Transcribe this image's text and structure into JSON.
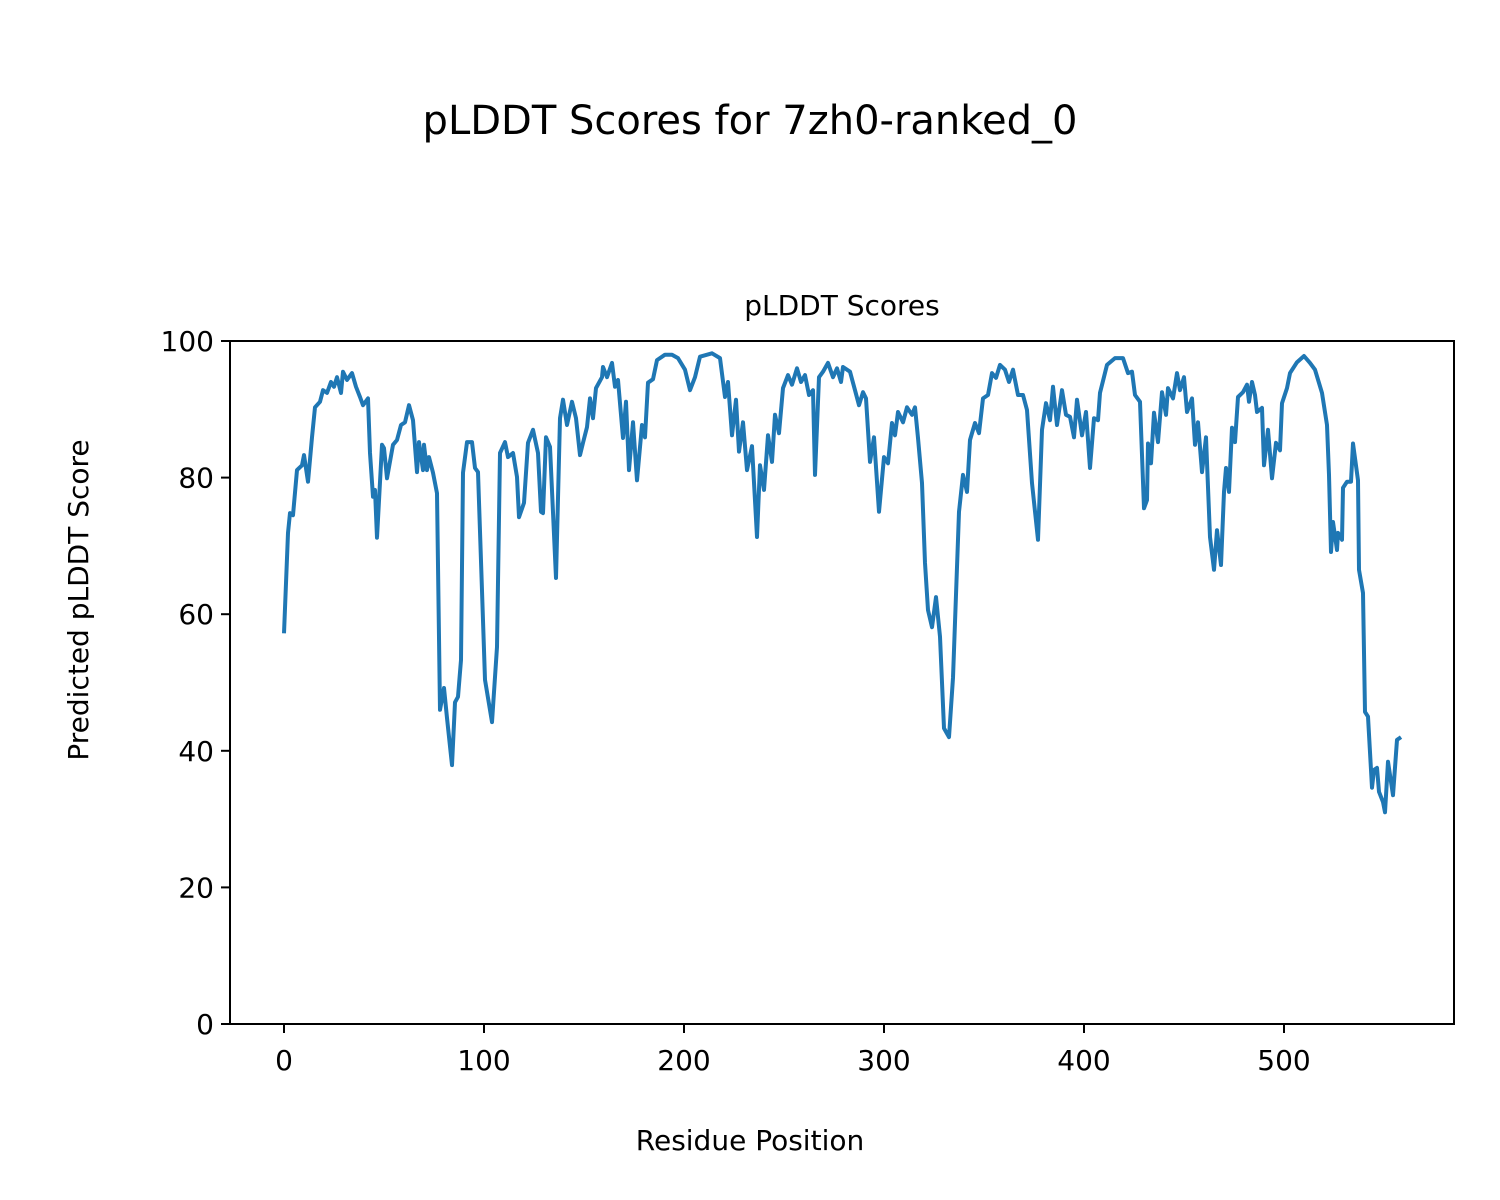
{
  "chart_data": {
    "type": "line",
    "suptitle": "pLDDT Scores for 7zh0-ranked_0",
    "title": "pLDDT Scores",
    "xlabel": "Residue Position",
    "ylabel": "Predicted pLDDT Score",
    "xlim": [
      -27,
      585
    ],
    "ylim": [
      0,
      100
    ],
    "xticks": [
      0,
      100,
      200,
      300,
      400,
      500
    ],
    "yticks": [
      0,
      20,
      40,
      60,
      80,
      100
    ],
    "grid": false,
    "line_color": "#1f77b4",
    "series": [
      {
        "name": "pLDDT",
        "points": [
          [
            0,
            57.2
          ],
          [
            2,
            71.9
          ],
          [
            3,
            74.8
          ],
          [
            4.5,
            74.5
          ],
          [
            6.5,
            81.1
          ],
          [
            9,
            81.8
          ],
          [
            10,
            83.3
          ],
          [
            12,
            79.4
          ],
          [
            14,
            85.9
          ],
          [
            15.5,
            90.3
          ],
          [
            18,
            91.1
          ],
          [
            19.5,
            92.8
          ],
          [
            21.5,
            92.4
          ],
          [
            23.5,
            94
          ],
          [
            25,
            93.3
          ],
          [
            26.5,
            94.7
          ],
          [
            28.5,
            92.4
          ],
          [
            29.5,
            95.5
          ],
          [
            31.5,
            94.3
          ],
          [
            34,
            95.3
          ],
          [
            36,
            93.3
          ],
          [
            38,
            91.8
          ],
          [
            39.5,
            90.6
          ],
          [
            42,
            91.6
          ],
          [
            43,
            83.6
          ],
          [
            44.5,
            77.2
          ],
          [
            45.5,
            78.2
          ],
          [
            46.5,
            71.2
          ],
          [
            49,
            84.8
          ],
          [
            50,
            84.3
          ],
          [
            51.5,
            79.9
          ],
          [
            54.5,
            84.8
          ],
          [
            56.5,
            85.5
          ],
          [
            58.5,
            87.7
          ],
          [
            60.5,
            88.1
          ],
          [
            62.5,
            90.6
          ],
          [
            64.5,
            88.4
          ],
          [
            66.5,
            80.8
          ],
          [
            67.5,
            85.2
          ],
          [
            69.5,
            81.1
          ],
          [
            70,
            84.8
          ],
          [
            71.5,
            81.1
          ],
          [
            72.5,
            83
          ],
          [
            74.5,
            80.7
          ],
          [
            76.5,
            77.7
          ],
          [
            78,
            46
          ],
          [
            80,
            49.2
          ],
          [
            81.5,
            44.8
          ],
          [
            84,
            37.9
          ],
          [
            85.5,
            47.1
          ],
          [
            87,
            47.9
          ],
          [
            88.5,
            53.3
          ],
          [
            89.5,
            80.7
          ],
          [
            91.5,
            85.2
          ],
          [
            94,
            85.2
          ],
          [
            95.5,
            81.4
          ],
          [
            97,
            80.8
          ],
          [
            100.5,
            50.4
          ],
          [
            104,
            44.2
          ],
          [
            106.5,
            55.2
          ],
          [
            108,
            83.6
          ],
          [
            110.5,
            85.2
          ],
          [
            112,
            83
          ],
          [
            114.5,
            83.6
          ],
          [
            116.5,
            80.1
          ],
          [
            117.5,
            74.2
          ],
          [
            120,
            76.3
          ],
          [
            122,
            85.1
          ],
          [
            124.5,
            87
          ],
          [
            127,
            83.6
          ],
          [
            128.5,
            75
          ],
          [
            129.5,
            74.8
          ],
          [
            131,
            85.9
          ],
          [
            133,
            84.5
          ],
          [
            136,
            65.3
          ],
          [
            138,
            88.7
          ],
          [
            139.5,
            91.4
          ],
          [
            141.5,
            87.7
          ],
          [
            144,
            91.1
          ],
          [
            146,
            88.7
          ],
          [
            148,
            83.3
          ],
          [
            149.5,
            85.1
          ],
          [
            151.5,
            87.4
          ],
          [
            153,
            91.6
          ],
          [
            154.5,
            88.7
          ],
          [
            156,
            93.1
          ],
          [
            159,
            94.7
          ],
          [
            159.5,
            96.2
          ],
          [
            161.5,
            94.7
          ],
          [
            164,
            96.8
          ],
          [
            165.5,
            93.3
          ],
          [
            167,
            94.3
          ],
          [
            169.5,
            85.8
          ],
          [
            171,
            91.1
          ],
          [
            172.5,
            81.1
          ],
          [
            174.5,
            88.1
          ],
          [
            176.5,
            79.6
          ],
          [
            179,
            87.7
          ],
          [
            180.5,
            85.9
          ],
          [
            182,
            93.9
          ],
          [
            184.5,
            94.4
          ],
          [
            186.5,
            97.2
          ],
          [
            190.5,
            98
          ],
          [
            194,
            98
          ],
          [
            197,
            97.5
          ],
          [
            200.5,
            95.8
          ],
          [
            203,
            92.8
          ],
          [
            205.5,
            94.7
          ],
          [
            208,
            97.7
          ],
          [
            214,
            98.2
          ],
          [
            218,
            97.5
          ],
          [
            220.5,
            91.8
          ],
          [
            222,
            94
          ],
          [
            224,
            86.2
          ],
          [
            226,
            91.4
          ],
          [
            227.5,
            83.8
          ],
          [
            229.5,
            88.1
          ],
          [
            231.5,
            81.1
          ],
          [
            234,
            84.6
          ],
          [
            236.5,
            71.3
          ],
          [
            238,
            81.8
          ],
          [
            240,
            78.2
          ],
          [
            242,
            86.2
          ],
          [
            244,
            82.3
          ],
          [
            245.5,
            89.2
          ],
          [
            247.5,
            86.5
          ],
          [
            249.5,
            93.1
          ],
          [
            252,
            95
          ],
          [
            254,
            93.6
          ],
          [
            256.5,
            96
          ],
          [
            258.5,
            94
          ],
          [
            260.5,
            95
          ],
          [
            262.5,
            92.1
          ],
          [
            264.5,
            92.8
          ],
          [
            265.5,
            80.4
          ],
          [
            267.5,
            94.7
          ],
          [
            269.5,
            95.5
          ],
          [
            272,
            96.8
          ],
          [
            274.5,
            94.7
          ],
          [
            276.5,
            96
          ],
          [
            278.5,
            94
          ],
          [
            279.5,
            96.2
          ],
          [
            283,
            95.5
          ],
          [
            285.5,
            92.8
          ],
          [
            287.5,
            90.6
          ],
          [
            289.5,
            92.5
          ],
          [
            291,
            91.6
          ],
          [
            293,
            82.3
          ],
          [
            295,
            85.9
          ],
          [
            297.5,
            75
          ],
          [
            300,
            83
          ],
          [
            302,
            82.1
          ],
          [
            304,
            88
          ],
          [
            305.5,
            86.2
          ],
          [
            307,
            89.6
          ],
          [
            309.5,
            88.1
          ],
          [
            311.5,
            90.3
          ],
          [
            314,
            89.2
          ],
          [
            315.5,
            90.3
          ],
          [
            317,
            85.8
          ],
          [
            319,
            79.2
          ],
          [
            320.5,
            67.5
          ],
          [
            322,
            60.6
          ],
          [
            324,
            58.1
          ],
          [
            326,
            62.5
          ],
          [
            328,
            56.7
          ],
          [
            330,
            43.3
          ],
          [
            332.5,
            42
          ],
          [
            334.5,
            50.7
          ],
          [
            337.5,
            75
          ],
          [
            339.5,
            80.4
          ],
          [
            341.5,
            77.9
          ],
          [
            343,
            85.5
          ],
          [
            345.5,
            88
          ],
          [
            347.5,
            86.5
          ],
          [
            349.5,
            91.6
          ],
          [
            352,
            92.1
          ],
          [
            354,
            95.3
          ],
          [
            356,
            94.6
          ],
          [
            358,
            96.5
          ],
          [
            360.5,
            95.8
          ],
          [
            362.5,
            94
          ],
          [
            364.5,
            95.8
          ],
          [
            367,
            92.1
          ],
          [
            369.5,
            92.1
          ],
          [
            371.5,
            89.9
          ],
          [
            374,
            79.2
          ],
          [
            377,
            70.9
          ],
          [
            379,
            87
          ],
          [
            381,
            90.9
          ],
          [
            383,
            88.4
          ],
          [
            384.5,
            93.3
          ],
          [
            386.5,
            87.7
          ],
          [
            389,
            92.8
          ],
          [
            391,
            89.2
          ],
          [
            393,
            88.9
          ],
          [
            395,
            85.9
          ],
          [
            396.5,
            91.4
          ],
          [
            399,
            86.2
          ],
          [
            401,
            89.6
          ],
          [
            403,
            81.4
          ],
          [
            405,
            88.7
          ],
          [
            407,
            88.4
          ],
          [
            408,
            92.4
          ],
          [
            411.5,
            96.5
          ],
          [
            415.5,
            97.5
          ],
          [
            419.5,
            97.5
          ],
          [
            422,
            95.3
          ],
          [
            424,
            95.5
          ],
          [
            425.5,
            92.1
          ],
          [
            428,
            91.1
          ],
          [
            430,
            75.5
          ],
          [
            431.5,
            76.7
          ],
          [
            432,
            85
          ],
          [
            433.5,
            82.1
          ],
          [
            435,
            89.5
          ],
          [
            437,
            85.2
          ],
          [
            439,
            92.5
          ],
          [
            441,
            89.2
          ],
          [
            442,
            93.1
          ],
          [
            444.5,
            91.6
          ],
          [
            446.5,
            95.3
          ],
          [
            448,
            92.8
          ],
          [
            450,
            94.7
          ],
          [
            451.5,
            89.6
          ],
          [
            454,
            91.6
          ],
          [
            455.5,
            84.8
          ],
          [
            457,
            88.1
          ],
          [
            459,
            80.8
          ],
          [
            461,
            85.9
          ],
          [
            463,
            71.3
          ],
          [
            465,
            66.5
          ],
          [
            466.5,
            72.3
          ],
          [
            468.5,
            67.2
          ],
          [
            470,
            77.9
          ],
          [
            471,
            81.4
          ],
          [
            472.5,
            77.9
          ],
          [
            474,
            87.3
          ],
          [
            475.5,
            85.2
          ],
          [
            477,
            91.8
          ],
          [
            479.5,
            92.5
          ],
          [
            481.5,
            93.6
          ],
          [
            482.5,
            91.1
          ],
          [
            484,
            94
          ],
          [
            485.5,
            92.1
          ],
          [
            486.5,
            89.6
          ],
          [
            489,
            90.2
          ],
          [
            490,
            81.8
          ],
          [
            492,
            87
          ],
          [
            494,
            79.9
          ],
          [
            496,
            85.1
          ],
          [
            498,
            84
          ],
          [
            499,
            90.9
          ],
          [
            501.5,
            93.1
          ],
          [
            503,
            95.3
          ],
          [
            506.5,
            96.9
          ],
          [
            510,
            97.8
          ],
          [
            513,
            96.8
          ],
          [
            515.5,
            95.8
          ],
          [
            519,
            92.4
          ],
          [
            521.5,
            87.7
          ],
          [
            522.5,
            80.4
          ],
          [
            523.5,
            69.1
          ],
          [
            524.5,
            73.5
          ],
          [
            526.5,
            69.4
          ],
          [
            527,
            71.9
          ],
          [
            529,
            70.9
          ],
          [
            529.5,
            78.5
          ],
          [
            531.5,
            79.4
          ],
          [
            533.5,
            79.4
          ],
          [
            534.5,
            85
          ],
          [
            537,
            79.6
          ],
          [
            537.5,
            66.5
          ],
          [
            539.5,
            63.1
          ],
          [
            540.5,
            45.7
          ],
          [
            542,
            45
          ],
          [
            544,
            34.6
          ],
          [
            545,
            37.2
          ],
          [
            546.5,
            37.5
          ],
          [
            547.5,
            34
          ],
          [
            549.5,
            32.5
          ],
          [
            550.5,
            31
          ],
          [
            552,
            38.4
          ],
          [
            554.5,
            33.5
          ],
          [
            556.5,
            41.6
          ],
          [
            558.5,
            42
          ]
        ]
      }
    ]
  }
}
